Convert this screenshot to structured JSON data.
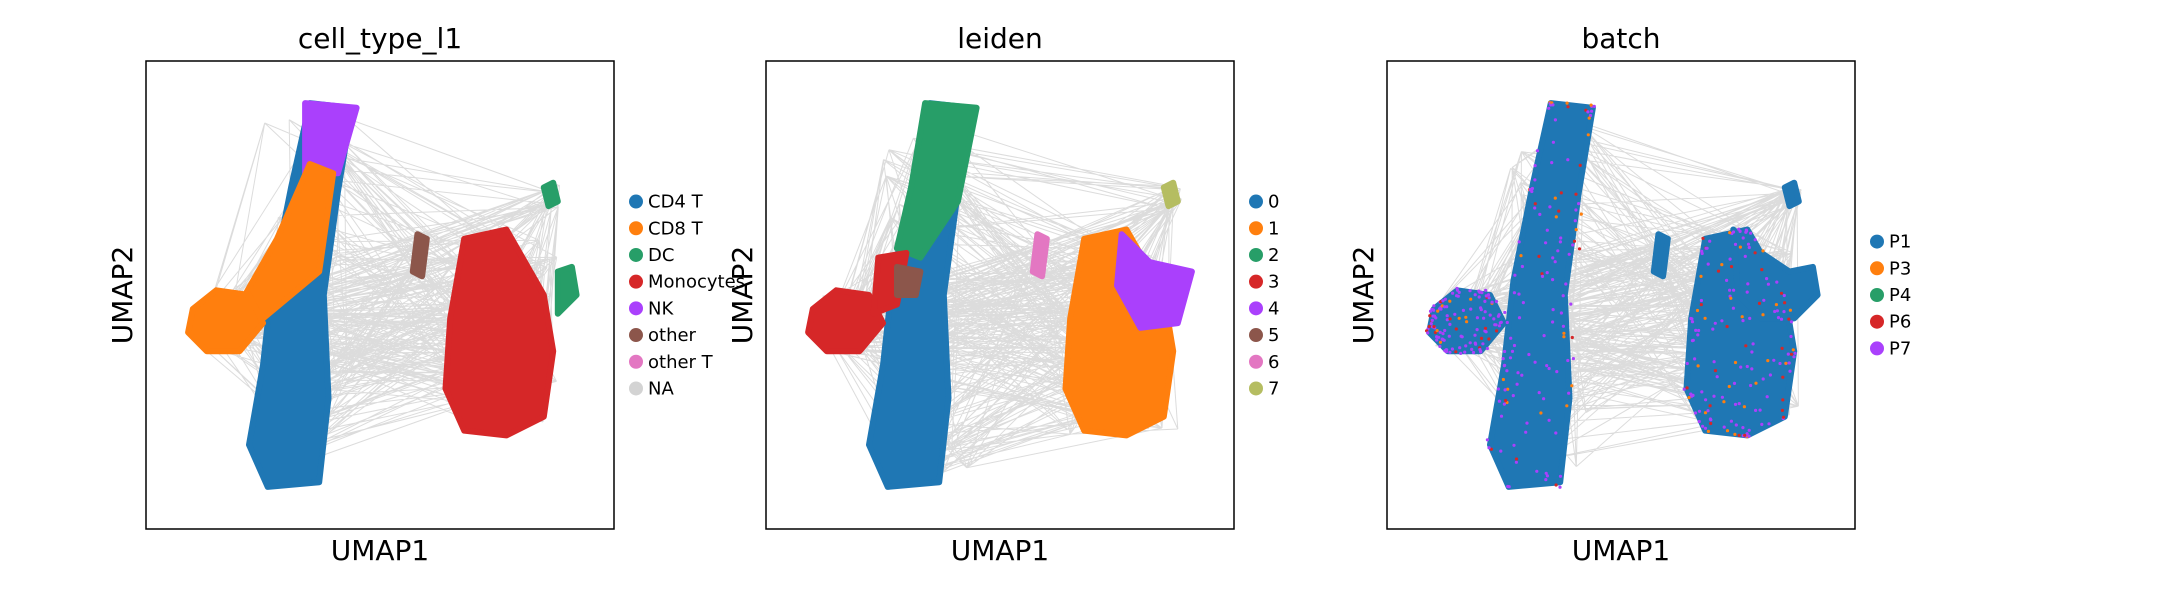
{
  "chart_data": [
    {
      "type": "scatter",
      "title": "cell_type_l1",
      "xlabel": "UMAP1",
      "ylabel": "UMAP2",
      "grid": false,
      "legend_position": "right",
      "legend": [
        {
          "label": "CD4 T",
          "color": "#1f77b4"
        },
        {
          "label": "CD8 T",
          "color": "#ff7f0e"
        },
        {
          "label": "DC",
          "color": "#279e68"
        },
        {
          "label": "Monocytes",
          "color": "#d62728"
        },
        {
          "label": "NK",
          "color": "#aa40fc"
        },
        {
          "label": "other",
          "color": "#8c564b"
        },
        {
          "label": "other T",
          "color": "#e377c2"
        },
        {
          "label": "NA",
          "color": "#d3d3d3"
        }
      ]
    },
    {
      "type": "scatter",
      "title": "leiden",
      "xlabel": "UMAP1",
      "ylabel": "UMAP2",
      "grid": false,
      "legend_position": "right",
      "legend": [
        {
          "label": "0",
          "color": "#1f77b4"
        },
        {
          "label": "1",
          "color": "#ff7f0e"
        },
        {
          "label": "2",
          "color": "#279e68"
        },
        {
          "label": "3",
          "color": "#d62728"
        },
        {
          "label": "4",
          "color": "#aa40fc"
        },
        {
          "label": "5",
          "color": "#8c564b"
        },
        {
          "label": "6",
          "color": "#e377c2"
        },
        {
          "label": "7",
          "color": "#b5bd61"
        }
      ]
    },
    {
      "type": "scatter",
      "title": "batch",
      "xlabel": "UMAP1",
      "ylabel": "UMAP2",
      "grid": false,
      "legend_position": "right",
      "legend": [
        {
          "label": "P1",
          "color": "#1f77b4"
        },
        {
          "label": "P3",
          "color": "#ff7f0e"
        },
        {
          "label": "P4",
          "color": "#279e68"
        },
        {
          "label": "P6",
          "color": "#d62728"
        },
        {
          "label": "P7",
          "color": "#aa40fc"
        }
      ]
    }
  ],
  "edge_color": "#808080"
}
